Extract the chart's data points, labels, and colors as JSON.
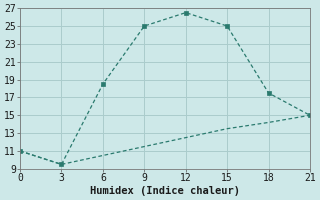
{
  "line1_x": [
    0,
    3,
    6,
    9,
    12,
    15,
    18,
    21
  ],
  "line1_y": [
    11,
    9.5,
    18.5,
    25,
    26.5,
    25,
    17.5,
    15
  ],
  "line2_x": [
    0,
    3,
    6,
    9,
    12,
    15,
    18,
    21
  ],
  "line2_y": [
    11,
    9.5,
    10.5,
    11.5,
    12.5,
    13.5,
    14.2,
    15
  ],
  "color": "#2a7a6e",
  "bg_color": "#cde8e8",
  "grid_color": "#aacccc",
  "xlabel": "Humidex (Indice chaleur)",
  "xlim": [
    0,
    21
  ],
  "ylim": [
    9,
    27
  ],
  "xticks": [
    0,
    3,
    6,
    9,
    12,
    15,
    18,
    21
  ],
  "yticks": [
    9,
    11,
    13,
    15,
    17,
    19,
    21,
    23,
    25,
    27
  ],
  "font_size": 7.5
}
